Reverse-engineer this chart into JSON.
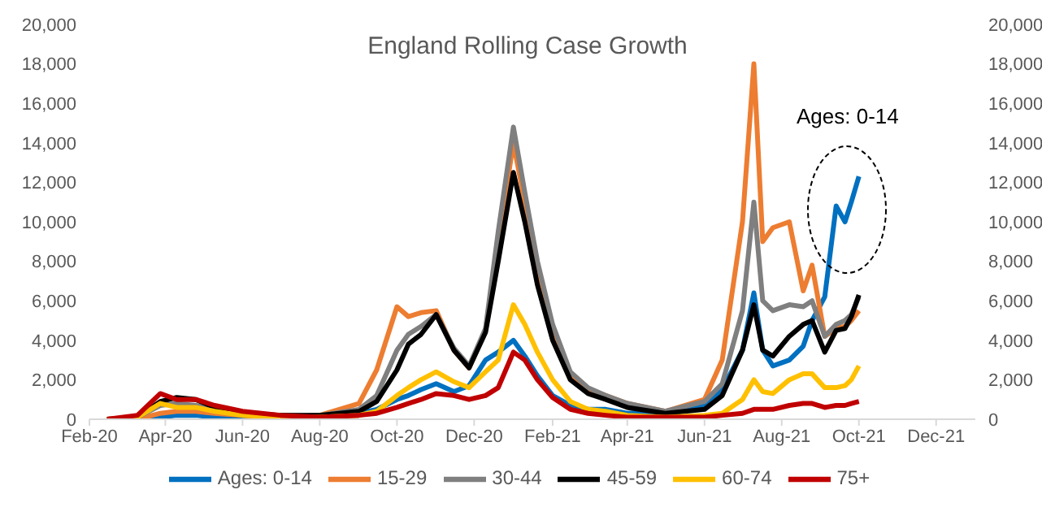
{
  "chart_data": {
    "type": "line",
    "title": "England Rolling Case Growth",
    "x": [
      "2020-02-15",
      "2020-03-10",
      "2020-03-28",
      "2020-04-10",
      "2020-04-25",
      "2020-05-10",
      "2020-06-01",
      "2020-07-01",
      "2020-08-01",
      "2020-09-01",
      "2020-09-15",
      "2020-10-01",
      "2020-10-10",
      "2020-10-20",
      "2020-11-01",
      "2020-11-15",
      "2020-11-27",
      "2020-12-10",
      "2020-12-20",
      "2021-01-01",
      "2021-01-10",
      "2021-01-20",
      "2021-02-01",
      "2021-02-15",
      "2021-03-01",
      "2021-03-15",
      "2021-04-01",
      "2021-05-01",
      "2021-06-01",
      "2021-06-15",
      "2021-07-01",
      "2021-07-10",
      "2021-07-17",
      "2021-07-25",
      "2021-08-07",
      "2021-08-18",
      "2021-08-25",
      "2021-09-04",
      "2021-09-13",
      "2021-09-20",
      "2021-09-25",
      "2021-10-01"
    ],
    "series": [
      {
        "name": "Ages: 0-14",
        "color": "#0070c0",
        "values": [
          0,
          0,
          100,
          200,
          200,
          100,
          100,
          100,
          100,
          300,
          500,
          1000,
          1200,
          1500,
          1800,
          1400,
          1700,
          3000,
          3400,
          4000,
          3200,
          2200,
          1200,
          700,
          500,
          500,
          300,
          400,
          700,
          1500,
          3500,
          6400,
          3500,
          2700,
          3000,
          3700,
          5000,
          6200,
          10800,
          10000,
          11000,
          12300
        ]
      },
      {
        "name": "15-29",
        "color": "#ed7d31",
        "values": [
          0,
          0,
          300,
          400,
          400,
          300,
          200,
          100,
          200,
          800,
          2500,
          5700,
          5200,
          5400,
          5500,
          3500,
          2600,
          4500,
          9000,
          14000,
          11000,
          7500,
          4500,
          2300,
          1500,
          1200,
          800,
          400,
          1000,
          3000,
          10000,
          18000,
          9000,
          9700,
          10000,
          6500,
          7800,
          4200,
          4600,
          4700,
          5000,
          5500
        ]
      },
      {
        "name": "30-44",
        "color": "#7f7f7f",
        "values": [
          0,
          100,
          700,
          800,
          700,
          500,
          300,
          200,
          200,
          500,
          1200,
          3500,
          4300,
          4700,
          5300,
          3600,
          2700,
          4600,
          9500,
          14800,
          11500,
          8000,
          4800,
          2400,
          1600,
          1200,
          800,
          400,
          900,
          1800,
          5500,
          11000,
          6000,
          5500,
          5800,
          5700,
          6000,
          4200,
          4800,
          5000,
          5300,
          6200
        ]
      },
      {
        "name": "45-59",
        "color": "#000000",
        "values": [
          0,
          100,
          900,
          1100,
          1000,
          600,
          300,
          200,
          200,
          400,
          900,
          2500,
          3800,
          4300,
          5300,
          3500,
          2600,
          4400,
          8000,
          12500,
          10000,
          6800,
          4000,
          2000,
          1300,
          1000,
          600,
          300,
          500,
          1200,
          3500,
          5800,
          3500,
          3200,
          4200,
          4800,
          5000,
          3400,
          4500,
          4600,
          5200,
          6300
        ]
      },
      {
        "name": "60-74",
        "color": "#ffc000",
        "values": [
          0,
          100,
          800,
          600,
          600,
          400,
          200,
          100,
          100,
          200,
          400,
          1200,
          1600,
          2000,
          2400,
          1900,
          1600,
          2400,
          3000,
          5800,
          4800,
          3400,
          2000,
          900,
          500,
          400,
          200,
          100,
          200,
          300,
          1000,
          2000,
          1400,
          1300,
          2000,
          2300,
          2300,
          1600,
          1600,
          1700,
          2000,
          2700
        ]
      },
      {
        "name": "75+",
        "color": "#c00000",
        "values": [
          0,
          200,
          1300,
          1000,
          1000,
          700,
          400,
          200,
          100,
          200,
          300,
          600,
          800,
          1000,
          1300,
          1200,
          1000,
          1200,
          1600,
          3400,
          3000,
          2000,
          1100,
          500,
          300,
          200,
          100,
          100,
          100,
          200,
          300,
          500,
          500,
          500,
          700,
          800,
          800,
          600,
          700,
          700,
          800,
          900
        ]
      }
    ],
    "xlim": [
      "2020-02-01",
      "2022-01-01"
    ],
    "xticks": [
      {
        "value": "2020-02-01",
        "label": "Feb-20"
      },
      {
        "value": "2020-04-01",
        "label": "Apr-20"
      },
      {
        "value": "2020-06-01",
        "label": "Jun-20"
      },
      {
        "value": "2020-08-01",
        "label": "Aug-20"
      },
      {
        "value": "2020-10-01",
        "label": "Oct-20"
      },
      {
        "value": "2020-12-01",
        "label": "Dec-20"
      },
      {
        "value": "2021-02-01",
        "label": "Feb-21"
      },
      {
        "value": "2021-04-01",
        "label": "Apr-21"
      },
      {
        "value": "2021-06-01",
        "label": "Jun-21"
      },
      {
        "value": "2021-08-01",
        "label": "Aug-21"
      },
      {
        "value": "2021-10-01",
        "label": "Oct-21"
      },
      {
        "value": "2021-12-01",
        "label": "Dec-21"
      }
    ],
    "ylim": [
      0,
      20000
    ],
    "yticks": [
      0,
      {
        "value": 2000,
        "label": "2,000"
      },
      {
        "value": 4000,
        "label": "4,000"
      },
      {
        "value": 6000,
        "label": "6,000"
      },
      {
        "value": 8000,
        "label": "8,000"
      },
      {
        "value": 10000,
        "label": "10,000"
      },
      {
        "value": 12000,
        "label": "12,000"
      },
      {
        "value": 14000,
        "label": "14,000"
      },
      {
        "value": 16000,
        "label": "16,000"
      },
      {
        "value": 18000,
        "label": "18,000"
      },
      {
        "value": 20000,
        "label": "20,000"
      }
    ],
    "y2lim": [
      0,
      20000
    ],
    "y2ticks": [
      0,
      {
        "value": 2000,
        "label": "2,000"
      },
      {
        "value": 4000,
        "label": "4,000"
      },
      {
        "value": 6000,
        "label": "6,000"
      },
      {
        "value": 8000,
        "label": "8,000"
      },
      {
        "value": 10000,
        "label": "10,000"
      },
      {
        "value": 12000,
        "label": "12,000"
      },
      {
        "value": 14000,
        "label": "14,000"
      },
      {
        "value": 16000,
        "label": "16,000"
      },
      {
        "value": 18000,
        "label": "18,000"
      },
      {
        "value": 20000,
        "label": "20,000"
      }
    ],
    "annotations": [
      "Ages: 0-14"
    ],
    "legend": "bottom",
    "grid": false,
    "marker": "none",
    "line_style": "solid"
  }
}
